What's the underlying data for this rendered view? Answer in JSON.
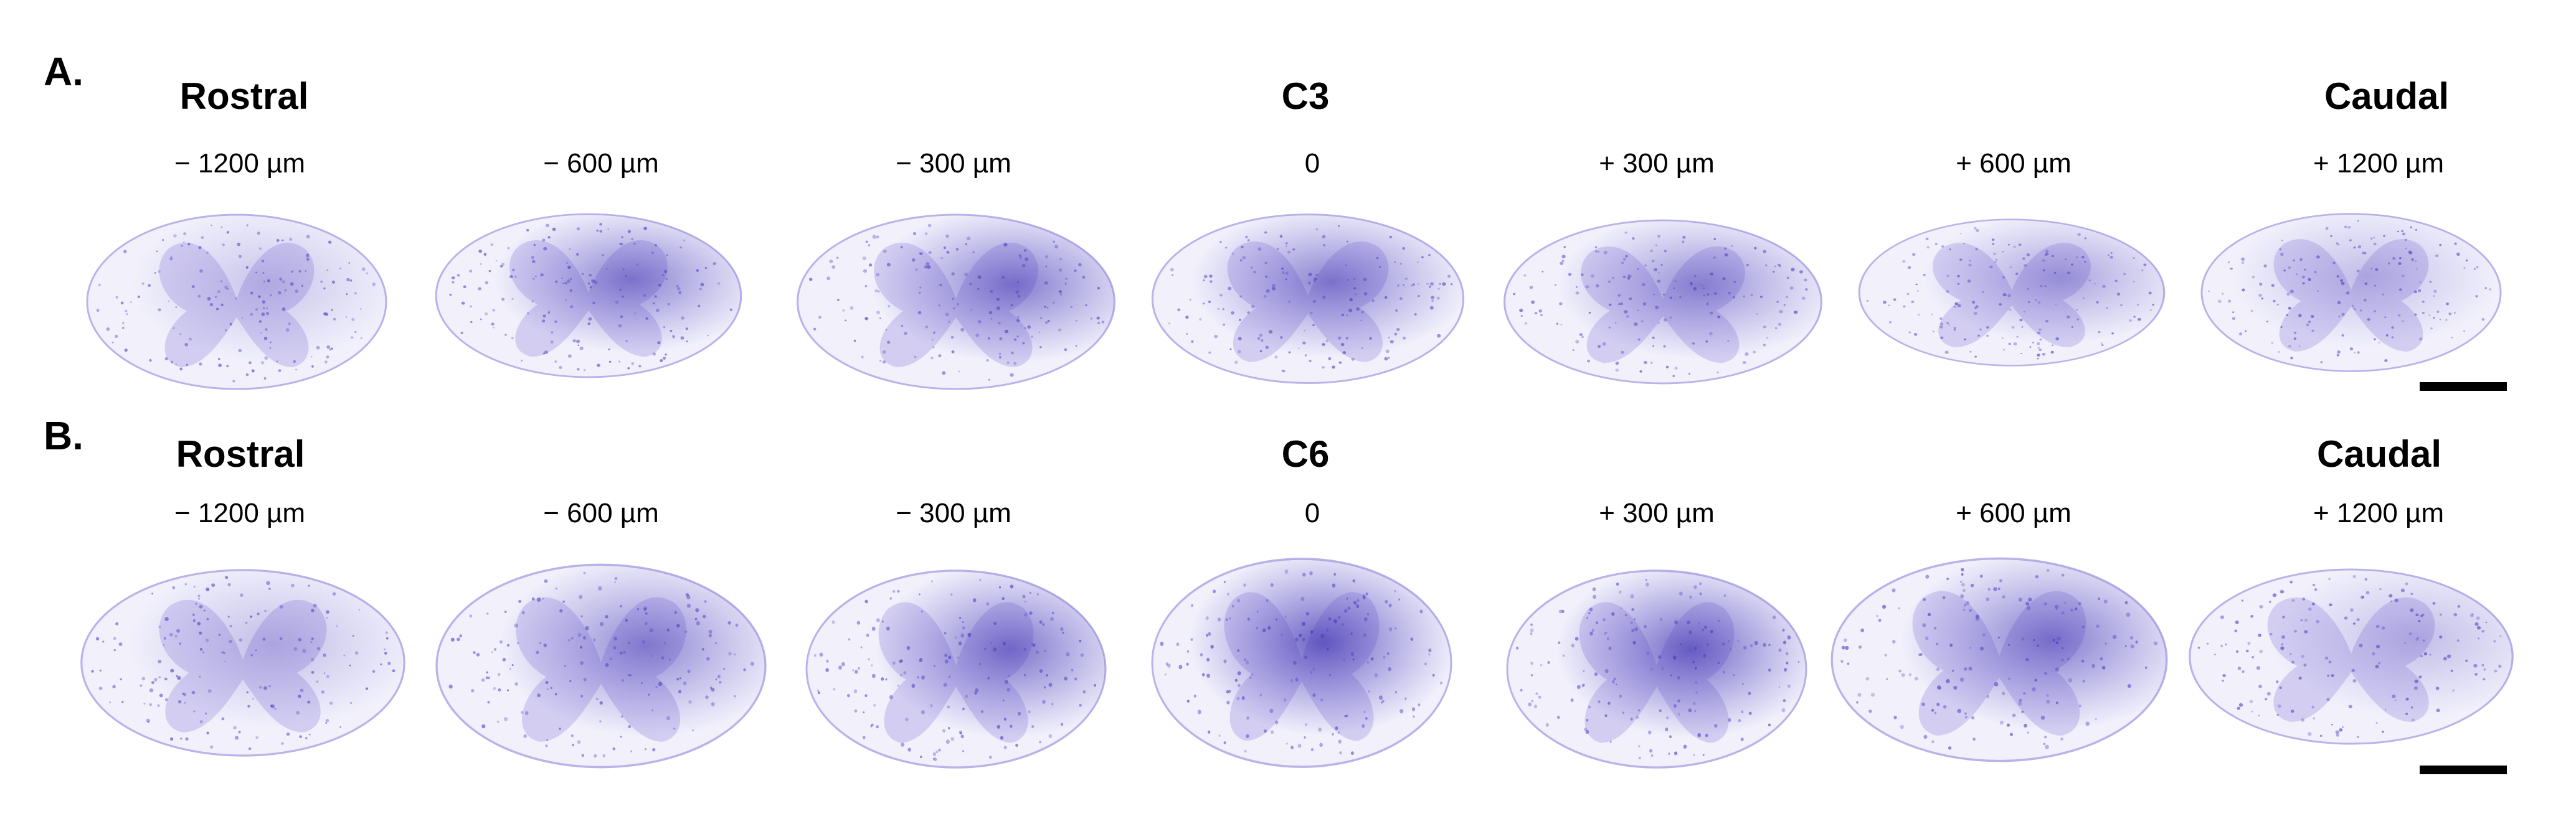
{
  "colors": {
    "stain": "#5a4fc8",
    "stain_dark": "#3d2fb0",
    "stain_light": "#b9b3ea",
    "brown": "#a0785a"
  },
  "panels": [
    {
      "letter": "A.",
      "rostral": "Rostral",
      "center": "C3",
      "caudal": "Caudal",
      "positions": [
        "− 1200 µm",
        "− 600 µm",
        "− 300 µm",
        "0",
        "+ 300 µm",
        "+ 600 µm",
        "+ 1200 µm"
      ],
      "lesion_intensity": [
        0.05,
        0.55,
        0.6,
        0.55,
        0.45,
        0.3,
        0.1
      ]
    },
    {
      "letter": "B.",
      "rostral": "Rostral",
      "center": "C6",
      "caudal": "Caudal",
      "positions": [
        "− 1200 µm",
        "− 600 µm",
        "− 300 µm",
        "0",
        "+ 300 µm",
        "+ 600 µm",
        "+ 1200 µm"
      ],
      "lesion_intensity": [
        0.1,
        0.5,
        0.65,
        0.8,
        0.75,
        0.6,
        0.1
      ]
    }
  ]
}
